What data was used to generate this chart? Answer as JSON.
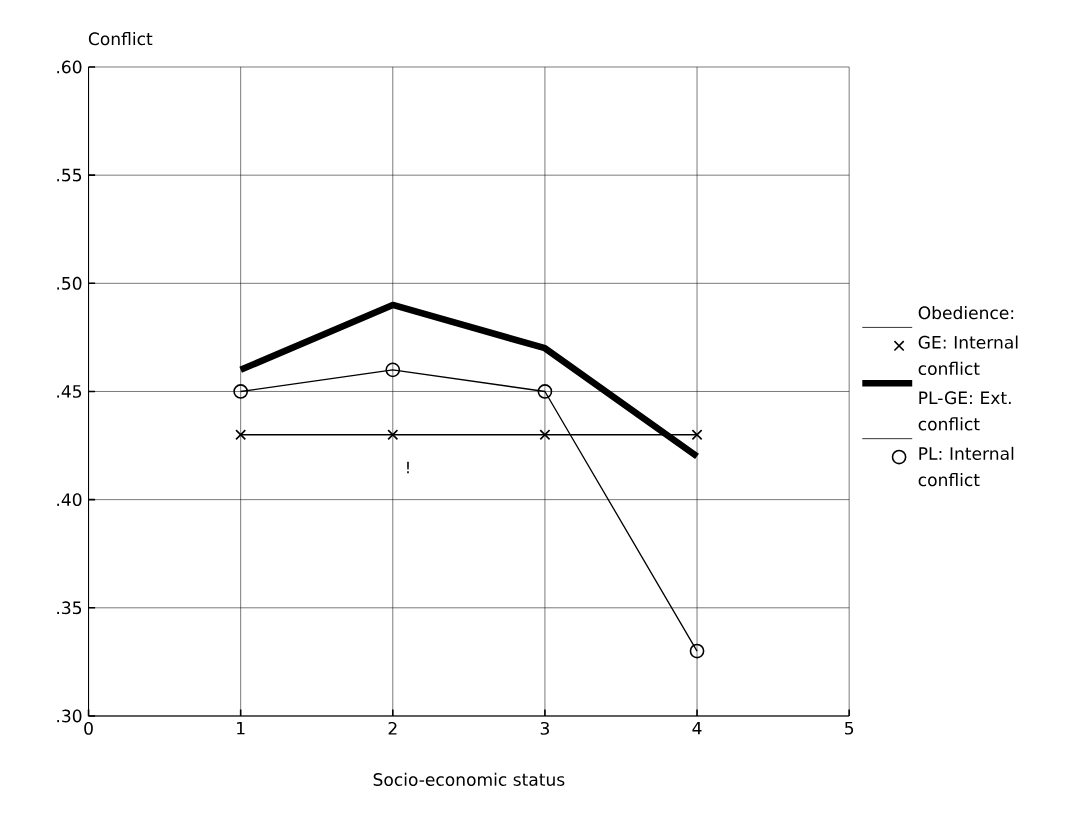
{
  "chart_data": {
    "type": "line",
    "xlabel": "Socio-economic status",
    "ylabel": "Conflict",
    "legend_title": "Obedience:",
    "x": [
      1,
      2,
      3,
      4
    ],
    "series": [
      {
        "name": "GE: Internal conflict",
        "color": "#000000",
        "marker": "cross",
        "values": [
          0.43,
          0.43,
          0.43,
          0.43
        ]
      },
      {
        "name": "PL-GE: Ext. conflict",
        "color": "#000000",
        "marker": "none",
        "values": [
          0.46,
          0.49,
          0.47,
          0.42
        ]
      },
      {
        "name": "PL: Internal conflict",
        "color": "#000000",
        "marker": "circle",
        "values": [
          0.45,
          0.46,
          0.45,
          0.33
        ]
      }
    ],
    "xlim": [
      0,
      5
    ],
    "ylim": [
      0.3,
      0.6
    ],
    "xticks": [
      0,
      1,
      2,
      3,
      4,
      5
    ],
    "yticks": [
      {
        "value": 0.3,
        "label": ".30"
      },
      {
        "value": 0.35,
        "label": ".35"
      },
      {
        "value": 0.4,
        "label": ".40"
      },
      {
        "value": 0.45,
        "label": ".45"
      },
      {
        "value": 0.5,
        "label": ".50"
      },
      {
        "value": 0.55,
        "label": ".55"
      },
      {
        "value": 0.6,
        "label": ".60"
      }
    ],
    "annotations": [
      "!"
    ],
    "grid": true,
    "legend": "right",
    "line_style": "solid"
  }
}
